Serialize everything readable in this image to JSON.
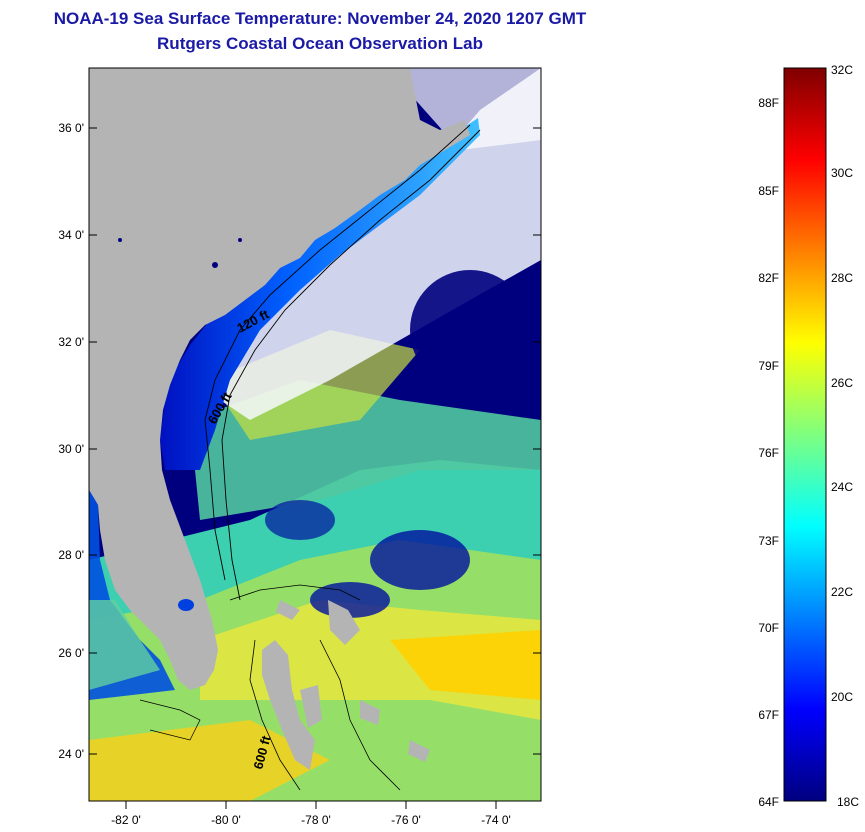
{
  "title": {
    "line1": "NOAA-19 Sea Surface Temperature:  November 24, 2020 1207 GMT",
    "line2": "Rutgers Coastal Ocean Observation Lab"
  },
  "map": {
    "lat_ticks": [
      "36 0'",
      "34 0'",
      "32 0'",
      "30 0'",
      "28 0'",
      "26 0'",
      "24 0'"
    ],
    "lon_ticks": [
      "-82 0'",
      "-80 0'",
      "-78 0'",
      "-76 0'",
      "-74 0'"
    ],
    "contour_labels": [
      "120 ft",
      "600 ft",
      "600 ft"
    ],
    "colors": {
      "land": "#b4b4b4",
      "ocean_cold": "#00007f",
      "cloud": "#ffffff"
    }
  },
  "colorbar": {
    "celsius_labels": [
      "32C",
      "30C",
      "28C",
      "26C",
      "24C",
      "22C",
      "20C",
      "18C"
    ],
    "fahrenheit_labels": [
      "88F",
      "85F",
      "82F",
      "79F",
      "76F",
      "73F",
      "70F",
      "67F",
      "64F"
    ],
    "range_c": [
      18,
      32
    ]
  }
}
